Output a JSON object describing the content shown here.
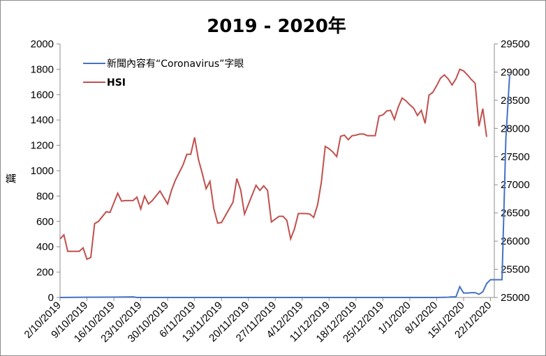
{
  "chart_data": {
    "type": "line",
    "title": "2019  -  2020年",
    "ylabel_left": "篇",
    "ylabel_right": "",
    "y_left_range": [
      0,
      2000
    ],
    "y_left_ticks": [
      "0",
      "200",
      "400",
      "600",
      "800",
      "1000",
      "1200",
      "1400",
      "1600",
      "1800",
      "2000"
    ],
    "y_right_range": [
      25000,
      29500
    ],
    "y_right_ticks": [
      "25000",
      "25500",
      "26000",
      "26500",
      "27000",
      "27500",
      "28000",
      "28500",
      "29000",
      "29500"
    ],
    "x_tick_labels": [
      "2/10/2019",
      "9/10/2019",
      "16/10/2019",
      "23/10/2019",
      "30/10/2019",
      "6/11/2019",
      "13/11/2019",
      "20/11/2019",
      "27/11/2019",
      "4/12/2019",
      "11/12/2019",
      "18/12/2019",
      "25/12/2019",
      "1/1/2020",
      "8/1/2020",
      "15/1/2020",
      "22/1/2020"
    ],
    "x_range_days": [
      0,
      113
    ],
    "grid": false,
    "legend_position": "top-left",
    "series": [
      {
        "name": "新聞內容有“Coronavirus”字眼",
        "axis": "left",
        "color": "#4472C4",
        "points": [
          [
            0,
            0
          ],
          [
            7,
            2
          ],
          [
            14,
            3
          ],
          [
            19,
            5
          ],
          [
            20,
            0
          ],
          [
            40,
            0
          ],
          [
            60,
            0
          ],
          [
            72,
            0
          ],
          [
            80,
            0
          ],
          [
            90,
            0
          ],
          [
            98,
            0
          ],
          [
            101,
            2
          ],
          [
            102,
            5
          ],
          [
            103,
            5
          ],
          [
            104,
            85
          ],
          [
            105,
            35
          ],
          [
            106,
            35
          ],
          [
            107,
            38
          ],
          [
            108,
            38
          ],
          [
            109,
            25
          ],
          [
            110,
            45
          ],
          [
            111,
            110
          ],
          [
            112,
            140
          ],
          [
            113,
            140
          ],
          [
            114,
            140
          ],
          [
            115,
            140
          ],
          [
            116,
            1250
          ],
          [
            117,
            1760
          ]
        ]
      },
      {
        "name": "HSI",
        "axis": "right",
        "color": "#C0504D",
        "points": [
          [
            0,
            26040
          ],
          [
            1,
            26110
          ],
          [
            2,
            25820
          ],
          [
            3,
            25820
          ],
          [
            4,
            25820
          ],
          [
            5,
            25820
          ],
          [
            6,
            25880
          ],
          [
            7,
            25680
          ],
          [
            8,
            25710
          ],
          [
            9,
            26310
          ],
          [
            10,
            26350
          ],
          [
            12,
            26520
          ],
          [
            13,
            26510
          ],
          [
            15,
            26850
          ],
          [
            16,
            26710
          ],
          [
            17,
            26720
          ],
          [
            18,
            26720
          ],
          [
            19,
            26720
          ],
          [
            20,
            26780
          ],
          [
            21,
            26570
          ],
          [
            22,
            26800
          ],
          [
            23,
            26660
          ],
          [
            24,
            26720
          ],
          [
            26,
            26890
          ],
          [
            28,
            26660
          ],
          [
            29,
            26900
          ],
          [
            30,
            27080
          ],
          [
            32,
            27350
          ],
          [
            33,
            27540
          ],
          [
            34,
            27540
          ],
          [
            35,
            27840
          ],
          [
            36,
            27450
          ],
          [
            37,
            27200
          ],
          [
            38,
            26930
          ],
          [
            39,
            27060
          ],
          [
            40,
            26580
          ],
          [
            41,
            26320
          ],
          [
            42,
            26330
          ],
          [
            45,
            26690
          ],
          [
            46,
            27110
          ],
          [
            47,
            26910
          ],
          [
            48,
            26480
          ],
          [
            51,
            26990
          ],
          [
            52,
            26900
          ],
          [
            53,
            26980
          ],
          [
            54,
            26900
          ],
          [
            55,
            26340
          ],
          [
            56,
            26390
          ],
          [
            57,
            26440
          ],
          [
            58,
            26440
          ],
          [
            59,
            26370
          ],
          [
            60,
            26040
          ],
          [
            61,
            26220
          ],
          [
            62,
            26490
          ],
          [
            63,
            26490
          ],
          [
            64,
            26490
          ],
          [
            65,
            26480
          ],
          [
            66,
            26420
          ],
          [
            67,
            26640
          ],
          [
            68,
            27050
          ],
          [
            69,
            27680
          ],
          [
            70,
            27640
          ],
          [
            71,
            27580
          ],
          [
            72,
            27500
          ],
          [
            73,
            27860
          ],
          [
            74,
            27880
          ],
          [
            75,
            27800
          ],
          [
            76,
            27870
          ],
          [
            77,
            27880
          ],
          [
            78,
            27900
          ],
          [
            79,
            27900
          ],
          [
            80,
            27870
          ],
          [
            81,
            27870
          ],
          [
            82,
            27870
          ],
          [
            83,
            28220
          ],
          [
            84,
            28240
          ],
          [
            85,
            28310
          ],
          [
            86,
            28320
          ],
          [
            87,
            28160
          ],
          [
            88,
            28380
          ],
          [
            89,
            28540
          ],
          [
            90,
            28490
          ],
          [
            91,
            28420
          ],
          [
            92,
            28360
          ],
          [
            93,
            28230
          ],
          [
            94,
            28320
          ],
          [
            95,
            28090
          ],
          [
            96,
            28590
          ],
          [
            97,
            28640
          ],
          [
            98,
            28760
          ],
          [
            99,
            28890
          ],
          [
            100,
            28950
          ],
          [
            101,
            28880
          ],
          [
            102,
            28770
          ],
          [
            103,
            28880
          ],
          [
            104,
            29050
          ],
          [
            105,
            29020
          ],
          [
            106,
            28950
          ],
          [
            107,
            28870
          ],
          [
            108,
            28800
          ],
          [
            109,
            28040
          ],
          [
            110,
            28350
          ],
          [
            111,
            27850
          ]
        ]
      }
    ]
  }
}
